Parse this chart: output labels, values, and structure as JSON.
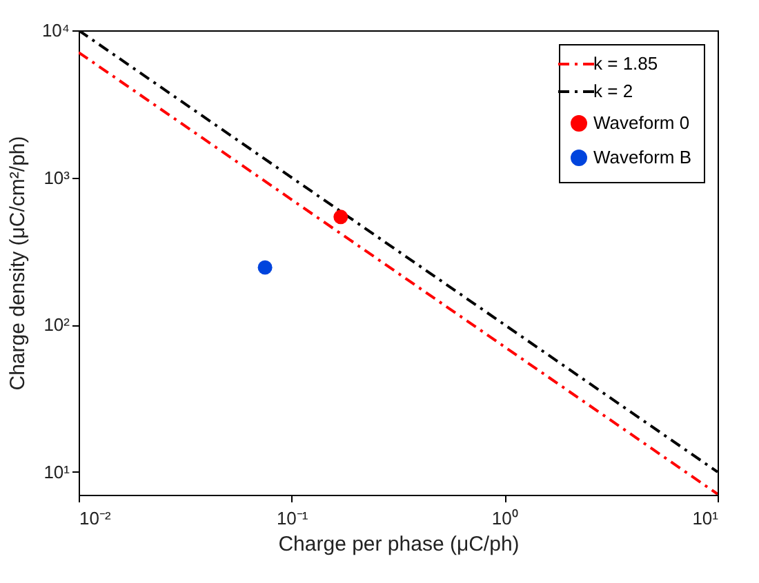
{
  "chart_data": {
    "type": "line",
    "xlabel": "Charge per phase (μC/ph)",
    "ylabel": "Charge density (μC/cm²/ph)",
    "log": "xy",
    "grid": false,
    "legend": "top right",
    "xlim": [
      0.01,
      10
    ],
    "ylim": [
      7,
      10000
    ],
    "xticks": [
      {
        "value": 0.01,
        "label": "10⁻²"
      },
      {
        "value": 0.1,
        "label": "10⁻¹"
      },
      {
        "value": 1,
        "label": "10⁰"
      },
      {
        "value": 10,
        "label": "10¹"
      }
    ],
    "yticks": [
      {
        "value": 10,
        "label": "10¹"
      },
      {
        "value": 100,
        "label": "10²"
      },
      {
        "value": 1000,
        "label": "10³"
      },
      {
        "value": 10000,
        "label": "10⁴"
      }
    ],
    "series": [
      {
        "name": "k = 1.85",
        "color": "#ff0000",
        "line_style": "dashed",
        "x": [
          0.01,
          10
        ],
        "values": [
          7080,
          7.08
        ]
      },
      {
        "name": "k = 2",
        "color": "#000000",
        "line_style": "dashed",
        "x": [
          0.01,
          10
        ],
        "values": [
          10000,
          10
        ]
      },
      {
        "name": "Waveform 0",
        "type": "scatter",
        "color": "#ff0000",
        "marker": "circle",
        "x": [
          0.17
        ],
        "values": [
          540
        ]
      },
      {
        "name": "Waveform B",
        "type": "scatter",
        "color": "#0044dd",
        "marker": "circle",
        "x": [
          0.075
        ],
        "values": [
          245
        ]
      }
    ]
  }
}
